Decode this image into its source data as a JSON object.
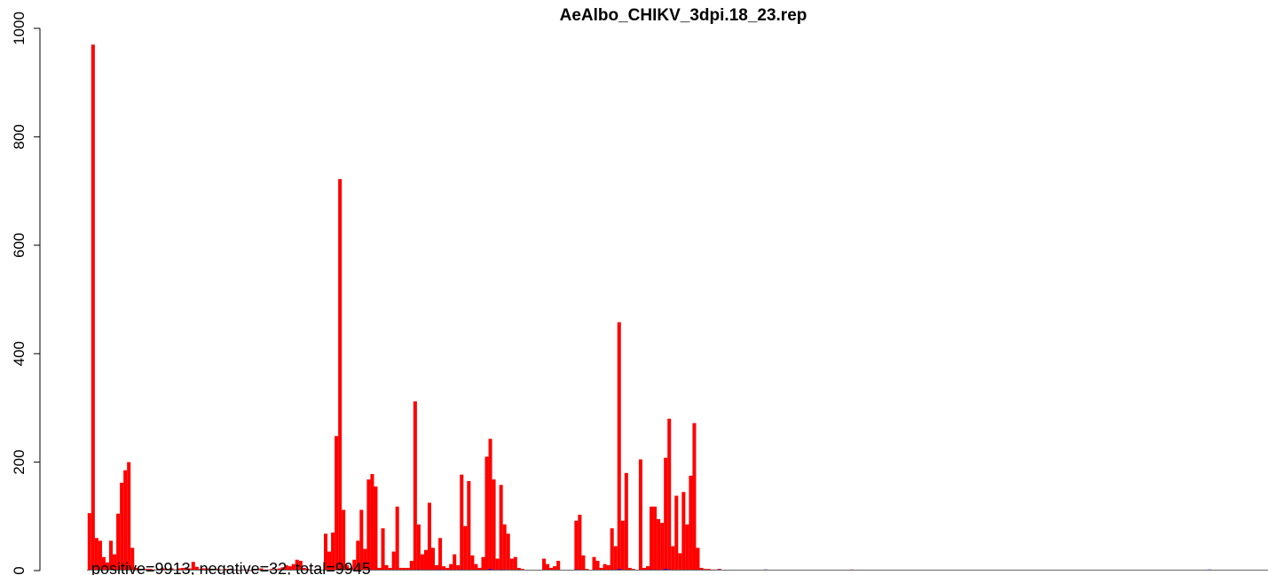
{
  "chart_data": {
    "type": "bar",
    "title": "AeAlbo_CHIKV_3dpi.18_23.rep",
    "xlabel": "",
    "ylabel": "",
    "ylim": [
      0,
      1000
    ],
    "y_ticks": [
      "0",
      "200",
      "400",
      "600",
      "800",
      "1000"
    ],
    "grid": false,
    "legend": "none",
    "colors": {
      "positive": "#ff0000",
      "negative": "#0000ff",
      "baseline": "#000000"
    },
    "x_range": [
      0,
      1650
    ],
    "bar_width": 5,
    "annotation": "positive=9913, negative=32, total=9945",
    "series": [
      {
        "name": "positive",
        "points": [
          [
            1,
            106
          ],
          [
            6,
            970
          ],
          [
            11,
            60
          ],
          [
            16,
            55
          ],
          [
            21,
            25
          ],
          [
            26,
            15
          ],
          [
            31,
            55
          ],
          [
            36,
            30
          ],
          [
            41,
            105
          ],
          [
            46,
            162
          ],
          [
            51,
            185
          ],
          [
            56,
            200
          ],
          [
            61,
            42
          ],
          [
            66,
            5
          ],
          [
            81,
            3
          ],
          [
            86,
            3
          ],
          [
            91,
            2
          ],
          [
            96,
            2
          ],
          [
            101,
            3
          ],
          [
            106,
            4
          ],
          [
            111,
            2
          ],
          [
            116,
            4
          ],
          [
            121,
            2
          ],
          [
            126,
            4
          ],
          [
            131,
            5
          ],
          [
            136,
            5
          ],
          [
            141,
            4
          ],
          [
            146,
            16
          ],
          [
            151,
            7
          ],
          [
            156,
            3
          ],
          [
            161,
            4
          ],
          [
            166,
            4
          ],
          [
            171,
            3
          ],
          [
            176,
            2
          ],
          [
            181,
            3
          ],
          [
            186,
            2
          ],
          [
            191,
            3
          ],
          [
            196,
            3
          ],
          [
            201,
            2
          ],
          [
            206,
            2
          ],
          [
            211,
            1
          ],
          [
            216,
            2
          ],
          [
            221,
            2
          ],
          [
            226,
            1
          ],
          [
            231,
            2
          ],
          [
            236,
            2
          ],
          [
            241,
            4
          ],
          [
            246,
            2
          ],
          [
            251,
            2
          ],
          [
            256,
            3
          ],
          [
            261,
            2
          ],
          [
            266,
            4
          ],
          [
            271,
            6
          ],
          [
            276,
            10
          ],
          [
            281,
            8
          ],
          [
            286,
            12
          ],
          [
            291,
            20
          ],
          [
            296,
            18
          ],
          [
            301,
            5
          ],
          [
            306,
            3
          ],
          [
            331,
            68
          ],
          [
            336,
            35
          ],
          [
            341,
            70
          ],
          [
            346,
            248
          ],
          [
            351,
            722
          ],
          [
            356,
            112
          ],
          [
            361,
            10
          ],
          [
            366,
            5
          ],
          [
            371,
            20
          ],
          [
            376,
            55
          ],
          [
            381,
            112
          ],
          [
            386,
            40
          ],
          [
            391,
            168
          ],
          [
            396,
            178
          ],
          [
            401,
            155
          ],
          [
            406,
            5
          ],
          [
            411,
            78
          ],
          [
            416,
            10
          ],
          [
            421,
            5
          ],
          [
            426,
            35
          ],
          [
            431,
            118
          ],
          [
            436,
            5
          ],
          [
            441,
            5
          ],
          [
            446,
            5
          ],
          [
            451,
            18
          ],
          [
            456,
            312
          ],
          [
            461,
            85
          ],
          [
            466,
            30
          ],
          [
            471,
            38
          ],
          [
            476,
            125
          ],
          [
            481,
            42
          ],
          [
            486,
            10
          ],
          [
            491,
            60
          ],
          [
            496,
            8
          ],
          [
            501,
            5
          ],
          [
            506,
            12
          ],
          [
            511,
            30
          ],
          [
            516,
            10
          ],
          [
            521,
            177
          ],
          [
            526,
            82
          ],
          [
            531,
            165
          ],
          [
            536,
            28
          ],
          [
            541,
            12
          ],
          [
            546,
            5
          ],
          [
            551,
            25
          ],
          [
            556,
            210
          ],
          [
            561,
            243
          ],
          [
            566,
            168
          ],
          [
            571,
            22
          ],
          [
            576,
            158
          ],
          [
            581,
            85
          ],
          [
            586,
            68
          ],
          [
            591,
            22
          ],
          [
            596,
            25
          ],
          [
            601,
            5
          ],
          [
            606,
            3
          ],
          [
            636,
            22
          ],
          [
            641,
            12
          ],
          [
            646,
            5
          ],
          [
            651,
            8
          ],
          [
            656,
            18
          ],
          [
            681,
            92
          ],
          [
            686,
            103
          ],
          [
            691,
            28
          ],
          [
            696,
            3
          ],
          [
            706,
            25
          ],
          [
            711,
            18
          ],
          [
            716,
            5
          ],
          [
            721,
            12
          ],
          [
            726,
            10
          ],
          [
            731,
            78
          ],
          [
            736,
            45
          ],
          [
            741,
            458
          ],
          [
            746,
            92
          ],
          [
            751,
            180
          ],
          [
            756,
            5
          ],
          [
            761,
            3
          ],
          [
            771,
            205
          ],
          [
            776,
            5
          ],
          [
            781,
            8
          ],
          [
            786,
            118
          ],
          [
            791,
            118
          ],
          [
            796,
            95
          ],
          [
            801,
            88
          ],
          [
            806,
            208
          ],
          [
            811,
            280
          ],
          [
            816,
            45
          ],
          [
            821,
            138
          ],
          [
            826,
            32
          ],
          [
            831,
            145
          ],
          [
            836,
            85
          ],
          [
            841,
            175
          ],
          [
            846,
            272
          ],
          [
            851,
            42
          ],
          [
            856,
            5
          ],
          [
            861,
            3
          ],
          [
            866,
            3
          ],
          [
            871,
            2
          ],
          [
            876,
            2
          ],
          [
            881,
            3
          ],
          [
            1066,
            2
          ]
        ]
      },
      {
        "name": "negative",
        "points": [
          [
            371,
            2
          ],
          [
            461,
            2
          ],
          [
            491,
            2
          ],
          [
            521,
            2
          ],
          [
            561,
            3
          ],
          [
            576,
            2
          ],
          [
            681,
            2
          ],
          [
            741,
            3
          ],
          [
            786,
            2
          ],
          [
            806,
            3
          ],
          [
            811,
            2
          ],
          [
            881,
            2
          ],
          [
            946,
            2
          ],
          [
            1566,
            2
          ]
        ]
      }
    ]
  }
}
